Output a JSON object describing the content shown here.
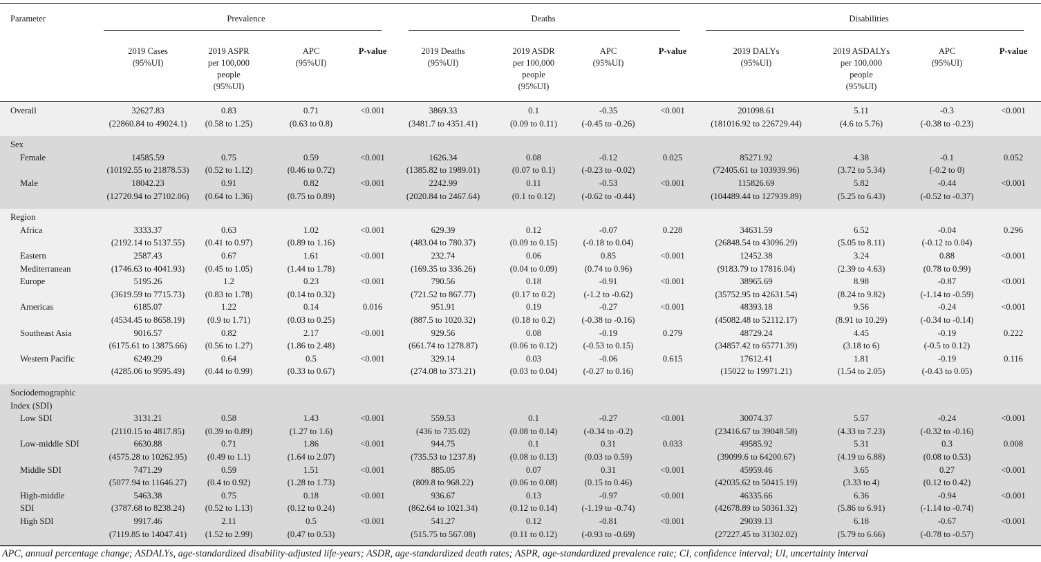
{
  "table": {
    "header": {
      "parameter": "Parameter",
      "groups": [
        "Prevalence",
        "Deaths",
        "Disabilities"
      ],
      "columns": [
        [
          "2019 Cases",
          "(95%UI)"
        ],
        [
          "2019 ASPR",
          "per 100,000",
          "people",
          "(95%UI)"
        ],
        [
          "APC",
          "(95%UI)"
        ],
        [
          "P-value"
        ],
        [
          "2019 Deaths",
          "(95%UI)"
        ],
        [
          "2019 ASDR",
          "per 100,000",
          "people",
          "(95%UI)"
        ],
        [
          "APC",
          "(95%UI)"
        ],
        [
          "P-value"
        ],
        [
          "2019 DALYs",
          "(95%UI)"
        ],
        [
          "2019 ASDALYs",
          "per 100,000",
          "people",
          "(95%UI)"
        ],
        [
          "APC",
          "(95%UI)"
        ],
        [
          "P-value"
        ]
      ]
    },
    "sections": [
      {
        "label": "",
        "shade": "#efefef",
        "rows": [
          {
            "label": [
              "Overall"
            ],
            "indent": false,
            "cells": [
              [
                "32627.83",
                "(22860.84 to 49024.1)"
              ],
              [
                "0.83",
                "(0.58 to 1.25)"
              ],
              [
                "0.71",
                "(0.63 to 0.8)"
              ],
              [
                "<0.001"
              ],
              [
                "3869.33",
                "(3481.7 to 4351.41)"
              ],
              [
                "0.1",
                "(0.09 to 0.11)"
              ],
              [
                "-0.35",
                "(-0.45 to -0.26)"
              ],
              [
                "<0.001"
              ],
              [
                "201098.61",
                "(181016.92 to 226729.44)"
              ],
              [
                "5.11",
                "(4.6 to 5.76)"
              ],
              [
                "-0.3",
                "(-0.38 to -0.23)"
              ],
              [
                "<0.001"
              ]
            ]
          }
        ]
      },
      {
        "label": "Sex",
        "shade": "#d9d9d9",
        "rows": [
          {
            "label": [
              "Female"
            ],
            "indent": true,
            "cells": [
              [
                "14585.59",
                "(10192.55 to 21878.53)"
              ],
              [
                "0.75",
                "(0.52 to 1.12)"
              ],
              [
                "0.59",
                "(0.46 to 0.72)"
              ],
              [
                "<0.001"
              ],
              [
                "1626.34",
                "(1385.82 to 1989.01)"
              ],
              [
                "0.08",
                "(0.07 to 0.1)"
              ],
              [
                "-0.12",
                "(-0.23 to -0.02)"
              ],
              [
                "0.025"
              ],
              [
                "85271.92",
                "(72405.61 to 103939.96)"
              ],
              [
                "4.38",
                "(3.72 to 5.34)"
              ],
              [
                "-0.1",
                "(-0.2 to 0)"
              ],
              [
                "0.052"
              ]
            ]
          },
          {
            "label": [
              "Male"
            ],
            "indent": true,
            "cells": [
              [
                "18042.23",
                "(12720.94 to 27102.06)"
              ],
              [
                "0.91",
                "(0.64 to 1.36)"
              ],
              [
                "0.82",
                "(0.75 to 0.89)"
              ],
              [
                "<0.001"
              ],
              [
                "2242.99",
                "(2020.84 to 2467.64)"
              ],
              [
                "0.11",
                "(0.1 to 0.12)"
              ],
              [
                "-0.53",
                "(-0.62 to -0.44)"
              ],
              [
                "<0.001"
              ],
              [
                "115826.69",
                "(104489.44 to 127939.89)"
              ],
              [
                "5.82",
                "(5.25 to 6.43)"
              ],
              [
                "-0.44",
                "(-0.52 to -0.37)"
              ],
              [
                "<0.001"
              ]
            ]
          }
        ]
      },
      {
        "label": "Region",
        "shade": "#efefef",
        "rows": [
          {
            "label": [
              "Africa"
            ],
            "indent": true,
            "cells": [
              [
                "3333.37",
                "(2192.14 to 5137.55)"
              ],
              [
                "0.63",
                "(0.41 to 0.97)"
              ],
              [
                "1.02",
                "(0.89 to 1.16)"
              ],
              [
                "<0.001"
              ],
              [
                "629.39",
                "(483.04 to 780.37)"
              ],
              [
                "0.12",
                "(0.09 to 0.15)"
              ],
              [
                "-0.07",
                "(-0.18 to 0.04)"
              ],
              [
                "0.228"
              ],
              [
                "34631.59",
                "(26848.54 to 43096.29)"
              ],
              [
                "6.52",
                "(5.05 to 8.11)"
              ],
              [
                "-0.04",
                "(-0.12 to 0.04)"
              ],
              [
                "0.296"
              ]
            ]
          },
          {
            "label": [
              "Eastern",
              "Mediterranean"
            ],
            "indent": true,
            "cells": [
              [
                "2587.43",
                "(1746.63 to 4041.93)"
              ],
              [
                "0.67",
                "(0.45 to 1.05)"
              ],
              [
                "1.61",
                "(1.44 to 1.78)"
              ],
              [
                "<0.001"
              ],
              [
                "232.74",
                "(169.35 to 336.26)"
              ],
              [
                "0.06",
                "(0.04 to 0.09)"
              ],
              [
                "0.85",
                "(0.74 to 0.96)"
              ],
              [
                "<0.001"
              ],
              [
                "12452.38",
                "(9183.79 to 17816.04)"
              ],
              [
                "3.24",
                "(2.39 to 4.63)"
              ],
              [
                "0.88",
                "(0.78 to 0.99)"
              ],
              [
                "<0.001"
              ]
            ]
          },
          {
            "label": [
              "Europe"
            ],
            "indent": true,
            "cells": [
              [
                "5195.26",
                "(3619.59 to 7715.73)"
              ],
              [
                "1.2",
                "(0.83 to 1.78)"
              ],
              [
                "0.23",
                "(0.14 to 0.32)"
              ],
              [
                "<0.001"
              ],
              [
                "790.56",
                "(721.52 to 867.77)"
              ],
              [
                "0.18",
                "(0.17 to 0.2)"
              ],
              [
                "-0.91",
                "(-1.2 to -0.62)"
              ],
              [
                "<0.001"
              ],
              [
                "38965.69",
                "(35752.95 to 42631.54)"
              ],
              [
                "8.98",
                "(8.24 to 9.82)"
              ],
              [
                "-0.87",
                "(-1.14 to -0.59)"
              ],
              [
                "<0.001"
              ]
            ]
          },
          {
            "label": [
              "Americas"
            ],
            "indent": true,
            "cells": [
              [
                "6185.07",
                "(4534.45 to 8658.19)"
              ],
              [
                "1.22",
                "(0.9 to 1.71)"
              ],
              [
                "0.14",
                "(0.03 to 0.25)"
              ],
              [
                "0.016"
              ],
              [
                "951.91",
                "(887.5 to 1020.32)"
              ],
              [
                "0.19",
                "(0.18 to 0.2)"
              ],
              [
                "-0.27",
                "(-0.38 to -0.16)"
              ],
              [
                "<0.001"
              ],
              [
                "48393.18",
                "(45082.48 to 52112.17)"
              ],
              [
                "9.56",
                "(8.91 to 10.29)"
              ],
              [
                "-0.24",
                "(-0.34 to -0.14)"
              ],
              [
                "<0.001"
              ]
            ]
          },
          {
            "label": [
              "Southeast Asia"
            ],
            "indent": true,
            "cells": [
              [
                "9016.57",
                "(6175.61 to 13875.66)"
              ],
              [
                "0.82",
                "(0.56 to 1.27)"
              ],
              [
                "2.17",
                "(1.86 to 2.48)"
              ],
              [
                "<0.001"
              ],
              [
                "929.56",
                "(661.74 to 1278.87)"
              ],
              [
                "0.08",
                "(0.06 to 0.12)"
              ],
              [
                "-0.19",
                "(-0.53 to 0.15)"
              ],
              [
                "0.279"
              ],
              [
                "48729.24",
                "(34857.42 to 65771.39)"
              ],
              [
                "4.45",
                "(3.18 to 6)"
              ],
              [
                "-0.19",
                "(-0.5 to 0.12)"
              ],
              [
                "0.222"
              ]
            ]
          },
          {
            "label": [
              "Western Pacific"
            ],
            "indent": true,
            "cells": [
              [
                "6249.29",
                "(4285.06 to 9595.49)"
              ],
              [
                "0.64",
                "(0.44 to 0.99)"
              ],
              [
                "0.5",
                "(0.33 to 0.67)"
              ],
              [
                "<0.001"
              ],
              [
                "329.14",
                "(274.08 to 373.21)"
              ],
              [
                "0.03",
                "(0.03 to 0.04)"
              ],
              [
                "-0.06",
                "(-0.27 to 0.16)"
              ],
              [
                "0.615"
              ],
              [
                "17612.41",
                "(15022 to 19971.21)"
              ],
              [
                "1.81",
                "(1.54 to 2.05)"
              ],
              [
                "-0.19",
                "(-0.43 to 0.05)"
              ],
              [
                "0.116"
              ]
            ]
          }
        ]
      },
      {
        "label": "Sociodemographic\nIndex (SDI)",
        "shade": "#d9d9d9",
        "rows": [
          {
            "label": [
              "Low SDI"
            ],
            "indent": true,
            "cells": [
              [
                "3131.21",
                "(2110.15 to 4817.85)"
              ],
              [
                "0.58",
                "(0.39 to 0.89)"
              ],
              [
                "1.43",
                "(1.27 to 1.6)"
              ],
              [
                "<0.001"
              ],
              [
                "559.53",
                "(436 to 735.02)"
              ],
              [
                "0.1",
                "(0.08 to 0.14)"
              ],
              [
                "-0.27",
                "(-0.34 to -0.2)"
              ],
              [
                "<0.001"
              ],
              [
                "30074.37",
                "(23416.67 to 39048.58)"
              ],
              [
                "5.57",
                "(4.33 to 7.23)"
              ],
              [
                "-0.24",
                "(-0.32 to -0.16)"
              ],
              [
                "<0.001"
              ]
            ]
          },
          {
            "label": [
              "Low-middle SDI"
            ],
            "indent": true,
            "cells": [
              [
                "6630.88",
                "(4575.28 to 10262.95)"
              ],
              [
                "0.71",
                "(0.49 to 1.1)"
              ],
              [
                "1.86",
                "(1.64 to 2.07)"
              ],
              [
                "<0.001"
              ],
              [
                "944.75",
                "(735.53 to 1237.8)"
              ],
              [
                "0.1",
                "(0.08 to 0.13)"
              ],
              [
                "0.31",
                "(0.03 to 0.59)"
              ],
              [
                "0.033"
              ],
              [
                "49585.92",
                "(39099.6 to 64200.67)"
              ],
              [
                "5.31",
                "(4.19 to 6.88)"
              ],
              [
                "0.3",
                "(0.08 to 0.53)"
              ],
              [
                "0.008"
              ]
            ]
          },
          {
            "label": [
              "Middle SDI"
            ],
            "indent": true,
            "cells": [
              [
                "7471.29",
                "(5077.94 to 11646.27)"
              ],
              [
                "0.59",
                "(0.4 to 0.92)"
              ],
              [
                "1.51",
                "(1.28 to 1.73)"
              ],
              [
                "<0.001"
              ],
              [
                "885.05",
                "(809.8 to 968.22)"
              ],
              [
                "0.07",
                "(0.06 to 0.08)"
              ],
              [
                "0.31",
                "(0.15 to 0.46)"
              ],
              [
                "<0.001"
              ],
              [
                "45959.46",
                "(42035.62 to 50415.19)"
              ],
              [
                "3.65",
                "(3.33 to 4)"
              ],
              [
                "0.27",
                "(0.12 to 0.42)"
              ],
              [
                "<0.001"
              ]
            ]
          },
          {
            "label": [
              "High-middle",
              "SDI"
            ],
            "indent": true,
            "cells": [
              [
                "5463.38",
                "(3787.68 to 8238.24)"
              ],
              [
                "0.75",
                "(0.52 to 1.13)"
              ],
              [
                "0.18",
                "(0.12 to 0.24)"
              ],
              [
                "<0.001"
              ],
              [
                "936.67",
                "(862.64 to 1021.34)"
              ],
              [
                "0.13",
                "(0.12 to 0.14)"
              ],
              [
                "-0.97",
                "(-1.19 to -0.74)"
              ],
              [
                "<0.001"
              ],
              [
                "46335.66",
                "(42678.89 to 50361.32)"
              ],
              [
                "6.36",
                "(5.86 to 6.91)"
              ],
              [
                "-0.94",
                "(-1.14 to -0.74)"
              ],
              [
                "<0.001"
              ]
            ]
          },
          {
            "label": [
              "High SDI"
            ],
            "indent": true,
            "cells": [
              [
                "9917.46",
                "(7119.85 to 14047.41)"
              ],
              [
                "2.11",
                "(1.52 to 2.99)"
              ],
              [
                "0.5",
                "(0.47 to 0.53)"
              ],
              [
                "<0.001"
              ],
              [
                "541.27",
                "(515.75 to 567.08)"
              ],
              [
                "0.12",
                "(0.11 to 0.12)"
              ],
              [
                "-0.81",
                "(-0.93 to -0.69)"
              ],
              [
                "<0.001"
              ],
              [
                "29039.13",
                "(27227.45 to 31302.02)"
              ],
              [
                "6.18",
                "(5.79 to 6.66)"
              ],
              [
                "-0.67",
                "(-0.78 to -0.57)"
              ],
              [
                "<0.001"
              ]
            ]
          }
        ]
      }
    ],
    "footnote": "APC, annual percentage change; ASDALYs, age-standardized disability-adjusted life-years; ASDR, age-standardized death rates; ASPR, age-standardized prevalence rate; CI, confidence interval; UI, uncertainty interval"
  }
}
